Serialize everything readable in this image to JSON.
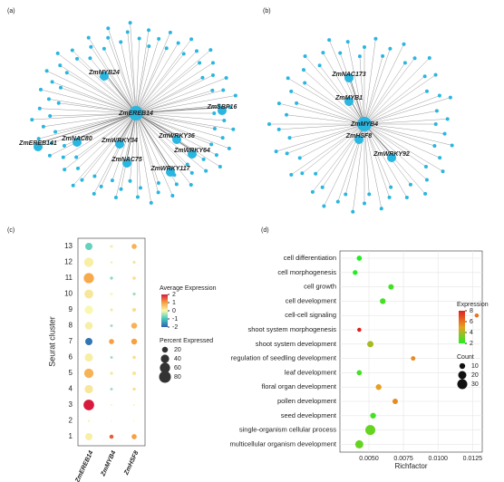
{
  "networks": [
    {
      "panel": "(a)",
      "hub": "ZmEREB14",
      "nodes": [
        "ZmMYB24",
        "ZmSBP16",
        "ZmNAC80",
        "ZmEREB141",
        "ZmWRKY34",
        "ZmWRKY36",
        "ZmWRKY64",
        "ZmNAC75",
        "ZmWRKY117"
      ]
    },
    {
      "panel": "(b)",
      "hub": "ZmMYB4",
      "nodes": [
        "ZmNAC173",
        "ZmMYB1",
        "ZmHSF8",
        "ZmWRKY92"
      ]
    }
  ],
  "chart_data": [
    {
      "type": "dotmatrix",
      "panel": "(c)",
      "y_label": "Seurat cluster",
      "categories": [
        "ZmEREB14",
        "ZmMYB4",
        "ZmHSF8"
      ],
      "clusters": [
        1,
        2,
        3,
        4,
        5,
        6,
        7,
        8,
        9,
        10,
        11,
        12,
        13
      ],
      "series": [
        {
          "name": "ZmEREB14",
          "expression": [
            0.1,
            0,
            2,
            0.2,
            0.8,
            0.1,
            -1.8,
            0.1,
            0,
            0.2,
            0.9,
            0.1,
            -0.8
          ],
          "percent": [
            30,
            3,
            65,
            40,
            50,
            40,
            30,
            35,
            40,
            45,
            60,
            50,
            30
          ]
        },
        {
          "name": "ZmMYB4",
          "expression": [
            1.5,
            0,
            0,
            -0.5,
            0.2,
            -0.5,
            1,
            -0.5,
            0.2,
            0,
            -0.6,
            0.1,
            0.1
          ],
          "percent": [
            10,
            1,
            2,
            4,
            5,
            4,
            15,
            4,
            4,
            4,
            5,
            3,
            5
          ]
        },
        {
          "name": "ZmHSF8",
          "expression": [
            1,
            0,
            0,
            0.3,
            0.2,
            0.3,
            1,
            0.8,
            0.3,
            -0.5,
            0.3,
            0.2,
            0.8
          ],
          "percent": [
            15,
            1,
            2,
            5,
            8,
            6,
            20,
            20,
            8,
            5,
            6,
            5,
            15
          ]
        }
      ],
      "color_title": "Average Expression",
      "colorscale": [
        "#3060b0",
        "#40c8c0",
        "#f8f8b0",
        "#f8a040",
        "#d81b3c"
      ],
      "clim": [
        -2,
        2
      ],
      "cticks": [
        2,
        1,
        0,
        -1,
        -2
      ],
      "size_title": "Percent Expressed",
      "size_ticks": [
        20,
        40,
        60,
        80
      ],
      "size_color": "#333333"
    },
    {
      "type": "dotplot",
      "panel": "(d)",
      "x_label": "Richfactor",
      "categories": [
        "cell differentiation",
        "cell morphogenesis",
        "cell growth",
        "cell development",
        "cell-cell signaling",
        "shoot system morphogenesis",
        "shoot system development",
        "regulation of seedling development",
        "leaf development",
        "floral organ development",
        "pollen development",
        "seed development",
        "single-organism cellular process",
        "multicellular organism development"
      ],
      "x": [
        0.0043,
        0.004,
        0.0066,
        0.006,
        0.0128,
        0.0043,
        0.0051,
        0.0082,
        0.0043,
        0.0057,
        0.0069,
        0.0053,
        0.0051,
        0.0043
      ],
      "expression": [
        2,
        2,
        2.5,
        2.5,
        6,
        8,
        4,
        5.5,
        2.5,
        5,
        5.5,
        2.5,
        3,
        3
      ],
      "count": [
        8,
        7,
        9,
        10,
        5,
        5,
        12,
        6,
        8,
        10,
        9,
        10,
        30,
        20
      ],
      "xlim": [
        0.0029,
        0.0132
      ],
      "xticks": [
        {
          "value": 0.005,
          "label": "0.0050"
        },
        {
          "value": 0.0075,
          "label": "0.0075"
        },
        {
          "value": 0.01,
          "label": "0.0100"
        },
        {
          "value": 0.0125,
          "label": "0.0125"
        }
      ],
      "grid": true,
      "color_title": "Expression",
      "colorscale": [
        "#22ee22",
        "#e8a020",
        "#e02020"
      ],
      "clim": [
        2,
        8
      ],
      "cticks": [
        8,
        6,
        4,
        2
      ],
      "size_title": "Count",
      "size_ticks": [
        10,
        20,
        30
      ],
      "size_color": "#111111"
    }
  ]
}
